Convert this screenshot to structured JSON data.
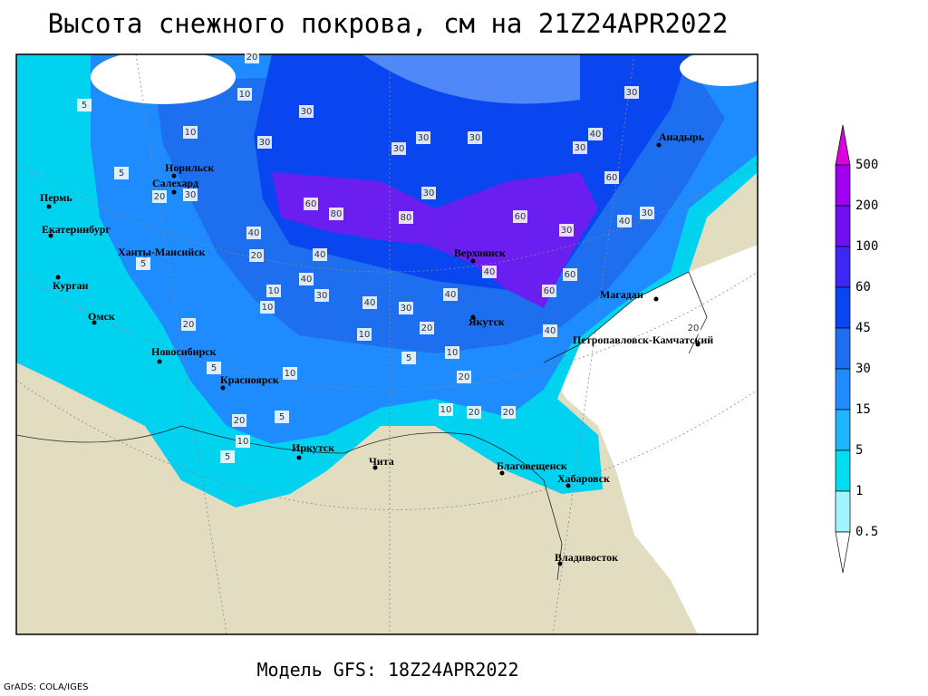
{
  "title": "Высота снежного покрова, см на 21Z24APR2022",
  "footer": "Модель GFS: 18Z24APR2022",
  "credit": "GrADS: COLA/IGES",
  "cities": [
    "Пермь",
    "Екатеринбург",
    "Ханты-Мансийск",
    "Курган",
    "Омск",
    "Новосибирск",
    "Красноярск",
    "Иркутск",
    "Чита",
    "Благовещенск",
    "Хабаровск",
    "Владивосток",
    "Якутск",
    "Верхоянск",
    "Магадан",
    "Петропавловск-Камчатский",
    "Анадырь",
    "Норильск",
    "Салехард"
  ],
  "contour_labels": [
    5,
    10,
    20,
    30,
    30,
    30,
    30,
    30,
    30,
    30,
    40,
    10,
    5,
    20,
    30,
    60,
    80,
    80,
    30,
    60,
    60,
    40,
    30,
    40,
    20,
    40,
    40,
    30,
    10,
    10,
    5,
    40,
    30,
    40,
    40,
    60,
    60,
    20,
    20,
    10,
    5,
    10,
    20,
    10,
    5,
    5,
    20,
    10,
    5,
    20,
    20,
    10,
    20,
    40,
    30
  ],
  "legend": {
    "labels": [
      500,
      200,
      100,
      60,
      45,
      30,
      15,
      5,
      1,
      0.5
    ],
    "colors": [
      "#dc00dc",
      "#a000f0",
      "#7010f0",
      "#3c28f5",
      "#0a46f0",
      "#1e6ef0",
      "#1e8cff",
      "#1eb4ff",
      "#00dcf0",
      "#a0f5ff",
      "#ffffff"
    ]
  }
}
